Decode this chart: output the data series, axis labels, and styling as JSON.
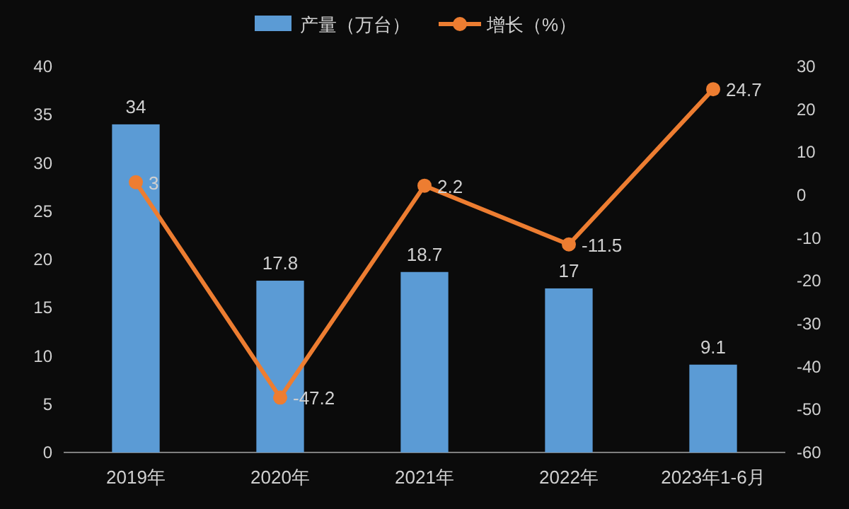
{
  "chart_data": {
    "type": "bar",
    "categories": [
      "2019年",
      "2020年",
      "2021年",
      "2022年",
      "2023年1-6月"
    ],
    "series": [
      {
        "name": "产量（万台）",
        "color": "#5b9bd5",
        "values": [
          34,
          17.8,
          18.7,
          17,
          9.1
        ]
      },
      {
        "name": "增长（%）",
        "type": "line",
        "axis": "y2",
        "color": "#ed7d31",
        "values": [
          3,
          -47.2,
          2.2,
          -11.5,
          24.7
        ]
      }
    ],
    "ylim": [
      0,
      40
    ],
    "yticks": [
      0,
      5,
      10,
      15,
      20,
      25,
      30,
      35,
      40
    ],
    "y2lim": [
      -60,
      30
    ],
    "y2ticks": [
      -60,
      -50,
      -40,
      -30,
      -20,
      -10,
      0,
      10,
      20,
      30
    ],
    "data_labels": true,
    "legend": "top",
    "marker": "circle",
    "line_style": "solid"
  }
}
